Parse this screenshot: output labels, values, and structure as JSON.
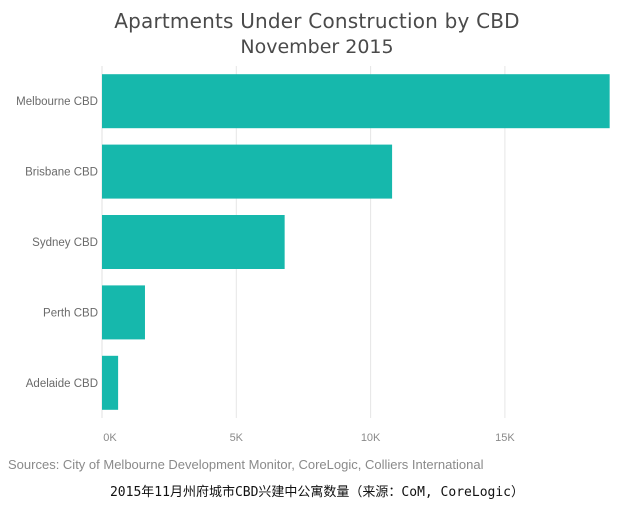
{
  "chart_data": {
    "type": "bar",
    "orientation": "horizontal",
    "title": "Apartments Under Construction by CBD",
    "subtitle": "November 2015",
    "categories": [
      "Melbourne CBD",
      "Brisbane CBD",
      "Sydney CBD",
      "Perth CBD",
      "Adelaide CBD"
    ],
    "values": [
      18900,
      10800,
      6800,
      1600,
      600
    ],
    "xlim": [
      0,
      18950
    ],
    "xticks": [
      0,
      5000,
      10000,
      15000
    ],
    "xtick_labels": [
      "0K",
      "5K",
      "10K",
      "15K"
    ],
    "xlabel": "",
    "ylabel": "",
    "grid": "vertical",
    "bar_color": "#16b8ac",
    "grid_color": "#e6e6e6"
  },
  "source_text": "Sources: City of Melbourne Development Monitor, CoreLogic, Colliers International",
  "caption_text": "2015年11月州府城市CBD兴建中公寓数量（来源：CoM, CoreLogic）"
}
